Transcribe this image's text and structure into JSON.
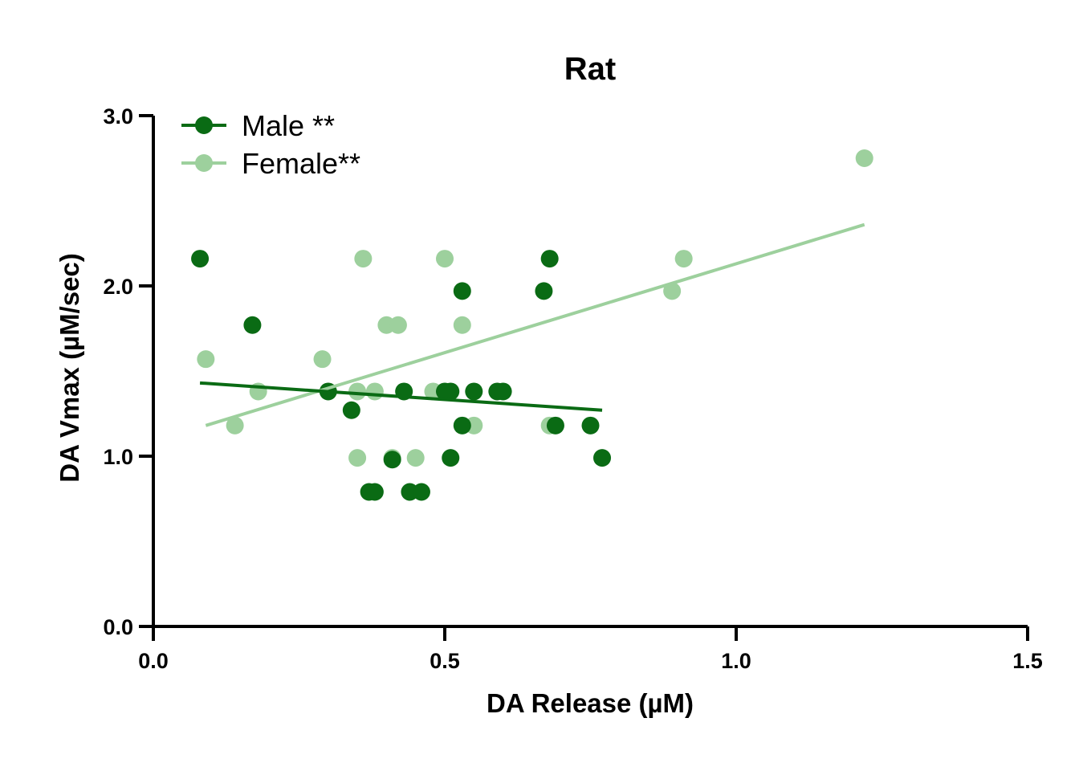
{
  "chart_data": {
    "type": "scatter",
    "title": "Rat",
    "xlabel": "DA Release (µM)",
    "ylabel": "DA Vmax (µM/sec)",
    "xlim": [
      0,
      1.5
    ],
    "ylim": [
      0,
      3.0
    ],
    "x_ticks": [
      "0.0",
      "0.5",
      "1.0",
      "1.5"
    ],
    "y_ticks": [
      "0.0",
      "1.0",
      "2.0",
      "3.0"
    ],
    "grid": false,
    "legend_position": "top-left",
    "series": [
      {
        "name": "Male **",
        "color": "#0a6b14",
        "points": [
          {
            "x": 0.08,
            "y": 2.16
          },
          {
            "x": 0.17,
            "y": 1.77
          },
          {
            "x": 0.3,
            "y": 1.38
          },
          {
            "x": 0.34,
            "y": 1.27
          },
          {
            "x": 0.37,
            "y": 0.79
          },
          {
            "x": 0.38,
            "y": 0.79
          },
          {
            "x": 0.41,
            "y": 0.98
          },
          {
            "x": 0.43,
            "y": 1.38
          },
          {
            "x": 0.44,
            "y": 0.79
          },
          {
            "x": 0.46,
            "y": 0.79
          },
          {
            "x": 0.5,
            "y": 1.38
          },
          {
            "x": 0.51,
            "y": 1.38
          },
          {
            "x": 0.51,
            "y": 0.99
          },
          {
            "x": 0.53,
            "y": 1.97
          },
          {
            "x": 0.53,
            "y": 1.18
          },
          {
            "x": 0.55,
            "y": 1.38
          },
          {
            "x": 0.59,
            "y": 1.38
          },
          {
            "x": 0.6,
            "y": 1.38
          },
          {
            "x": 0.67,
            "y": 1.97
          },
          {
            "x": 0.68,
            "y": 2.16
          },
          {
            "x": 0.69,
            "y": 1.18
          },
          {
            "x": 0.75,
            "y": 1.18
          },
          {
            "x": 0.77,
            "y": 0.99
          }
        ],
        "fit_line": {
          "x": [
            0.08,
            0.77
          ],
          "y": [
            1.43,
            1.27
          ]
        }
      },
      {
        "name": "Female**",
        "color": "#9dd09d",
        "points": [
          {
            "x": 0.09,
            "y": 1.57
          },
          {
            "x": 0.14,
            "y": 1.18
          },
          {
            "x": 0.18,
            "y": 1.38
          },
          {
            "x": 0.29,
            "y": 1.57
          },
          {
            "x": 0.35,
            "y": 0.99
          },
          {
            "x": 0.35,
            "y": 1.38
          },
          {
            "x": 0.36,
            "y": 2.16
          },
          {
            "x": 0.38,
            "y": 1.38
          },
          {
            "x": 0.4,
            "y": 1.77
          },
          {
            "x": 0.41,
            "y": 0.99
          },
          {
            "x": 0.42,
            "y": 1.77
          },
          {
            "x": 0.45,
            "y": 0.99
          },
          {
            "x": 0.48,
            "y": 1.38
          },
          {
            "x": 0.5,
            "y": 2.16
          },
          {
            "x": 0.53,
            "y": 1.77
          },
          {
            "x": 0.55,
            "y": 1.18
          },
          {
            "x": 0.68,
            "y": 1.18
          },
          {
            "x": 0.89,
            "y": 1.97
          },
          {
            "x": 0.91,
            "y": 2.16
          },
          {
            "x": 1.22,
            "y": 2.75
          }
        ],
        "fit_line": {
          "x": [
            0.09,
            1.22
          ],
          "y": [
            1.18,
            2.36
          ]
        }
      }
    ]
  }
}
